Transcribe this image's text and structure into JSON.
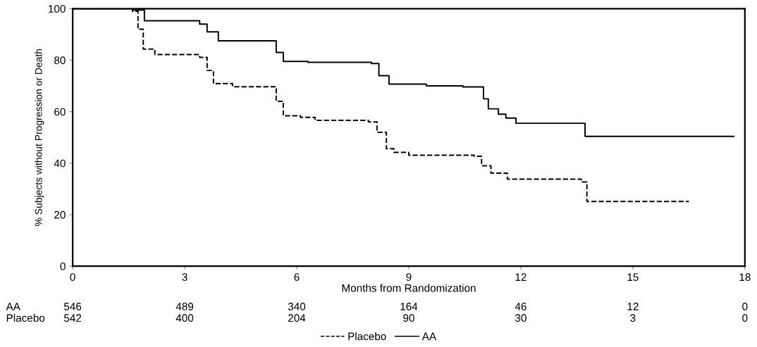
{
  "chart_data": {
    "type": "step",
    "xlabel": "Months from Randomization",
    "ylabel": "% Subjects without Progression or Death",
    "xlim": [
      0,
      18
    ],
    "ylim": [
      0,
      100
    ],
    "xticks": [
      0,
      3,
      6,
      9,
      12,
      15,
      18
    ],
    "yticks": [
      0,
      20,
      40,
      60,
      80,
      100
    ],
    "grid": false,
    "legend": "bottom",
    "marker": "none",
    "series": [
      {
        "name": "Placebo",
        "color": "#000000",
        "line_style": "dashed",
        "x": [
          0,
          1.6,
          1.75,
          1.89,
          2.2,
          3.4,
          3.6,
          3.77,
          4.28,
          5.28,
          5.45,
          5.64,
          6.1,
          6.49,
          7.92,
          8.15,
          8.4,
          8.6,
          9.0,
          10.75,
          10.95,
          11.2,
          11.64,
          13.62,
          13.77,
          16.5
        ],
        "values": [
          100,
          99,
          92,
          84.3,
          82.2,
          81.1,
          76,
          70.9,
          69.7,
          69.7,
          64,
          58.4,
          57.8,
          56.6,
          56.0,
          52,
          45.6,
          44.2,
          43.1,
          42.7,
          39,
          36.1,
          33.8,
          32.7,
          25.1,
          25.1
        ]
      },
      {
        "name": "AA",
        "color": "#000000",
        "line_style": "solid",
        "x": [
          0,
          1.6,
          1.92,
          3.4,
          3.6,
          3.9,
          5.23,
          5.45,
          5.64,
          6.3,
          8.0,
          8.2,
          8.47,
          9.47,
          10.45,
          10.83,
          11.0,
          11.13,
          11.4,
          11.6,
          11.87,
          13.66,
          13.72,
          17.7
        ],
        "values": [
          100,
          99.5,
          95.3,
          94.0,
          91,
          87.5,
          87.5,
          83,
          79.5,
          79.2,
          78.7,
          74,
          70.7,
          70.0,
          69.6,
          69.6,
          65,
          61.1,
          59,
          57.5,
          55.5,
          55.5,
          50.4,
          50.4
        ]
      }
    ],
    "annotations": [
      "AA",
      "546",
      "489",
      "340",
      "164",
      "46",
      "12",
      "0",
      "Placebo",
      "542",
      "400",
      "204",
      "90",
      "30",
      "3",
      "0"
    ]
  }
}
